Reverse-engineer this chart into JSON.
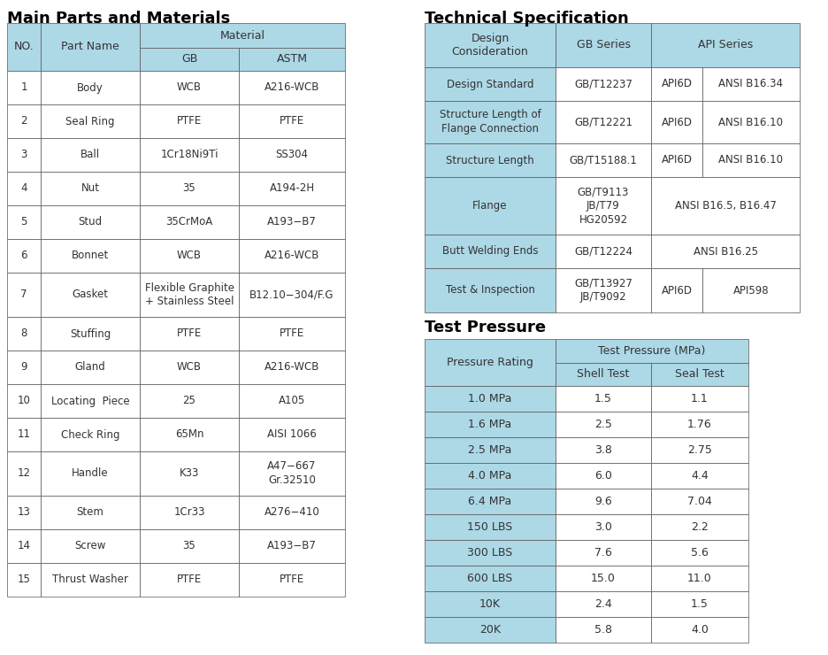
{
  "title_left": "Main Parts and Materials",
  "title_right": "Technical Specification",
  "title_test": "Test Pressure",
  "header_bg": "#ADD8E6",
  "white_bg": "#FFFFFF",
  "border_color": "#555555",
  "text_color": "#333333",
  "main_parts_rows": [
    [
      "1",
      "Body",
      "WCB",
      "A216-WCB"
    ],
    [
      "2",
      "Seal Ring",
      "PTFE",
      "PTFE"
    ],
    [
      "3",
      "Ball",
      "1Cr18Ni9Ti",
      "SS304"
    ],
    [
      "4",
      "Nut",
      "35",
      "A194-2H"
    ],
    [
      "5",
      "Stud",
      "35CrMoA",
      "A193−B7"
    ],
    [
      "6",
      "Bonnet",
      "WCB",
      "A216-WCB"
    ],
    [
      "7",
      "Gasket",
      "Flexible Graphite\n+ Stainless Steel",
      "B12.10−304/F.G"
    ],
    [
      "8",
      "Stuffing",
      "PTFE",
      "PTFE"
    ],
    [
      "9",
      "Gland",
      "WCB",
      "A216-WCB"
    ],
    [
      "10",
      "Locating  Piece",
      "25",
      "A105"
    ],
    [
      "11",
      "Check Ring",
      "65Mn",
      "AISI 1066"
    ],
    [
      "12",
      "Handle",
      "K33",
      "A47−667\nGr.32510"
    ],
    [
      "13",
      "Stem",
      "1Cr33",
      "A276−410"
    ],
    [
      "14",
      "Screw",
      "35",
      "A193−B7"
    ],
    [
      "15",
      "Thrust Washer",
      "PTFE",
      "PTFE"
    ]
  ],
  "main_row_heights": [
    38,
    38,
    38,
    38,
    38,
    38,
    50,
    38,
    38,
    38,
    38,
    50,
    38,
    38,
    38
  ],
  "tech_spec_rows": [
    [
      "Design Standard",
      "GB/T12237",
      "API6D",
      "ANSI B16.34"
    ],
    [
      "Structure Length of\nFlange Connection",
      "GB/T12221",
      "API6D",
      "ANSI B16.10"
    ],
    [
      "Structure Length",
      "GB/T15188.1",
      "API6D",
      "ANSI B16.10"
    ],
    [
      "Flange",
      "GB/T9113\nJB/T79\nHG20592",
      "",
      "ANSI B16.5, B16.47"
    ],
    [
      "Butt Welding Ends",
      "GB/T12224",
      "",
      "ANSI B16.25"
    ],
    [
      "Test & Inspection",
      "GB/T13927\nJB/T9092",
      "API6D",
      "API598"
    ]
  ],
  "tech_row_heights": [
    38,
    48,
    38,
    65,
    38,
    50
  ],
  "test_pressure_rows": [
    [
      "1.0 MPa",
      "1.5",
      "1.1"
    ],
    [
      "1.6 MPa",
      "2.5",
      "1.76"
    ],
    [
      "2.5 MPa",
      "3.8",
      "2.75"
    ],
    [
      "4.0 MPa",
      "6.0",
      "4.4"
    ],
    [
      "6.4 MPa",
      "9.6",
      "7.04"
    ],
    [
      "150 LBS",
      "3.0",
      "2.2"
    ],
    [
      "300 LBS",
      "7.6",
      "5.6"
    ],
    [
      "600 LBS",
      "15.0",
      "11.0"
    ],
    [
      "10K",
      "2.4",
      "1.5"
    ],
    [
      "20K",
      "5.8",
      "4.0"
    ]
  ]
}
